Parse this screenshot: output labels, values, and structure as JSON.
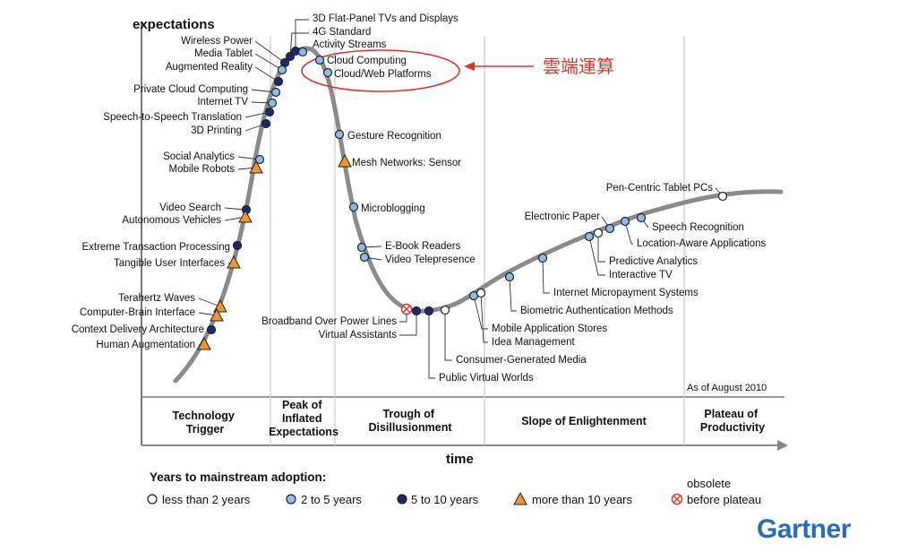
{
  "axis": {
    "y_label": "expectations",
    "x_label": "time"
  },
  "as_of": "As of August 2010",
  "phases": [
    {
      "lines": [
        "Technology",
        "Trigger"
      ]
    },
    {
      "lines": [
        "Peak of",
        "Inflated",
        "Expectations"
      ]
    },
    {
      "lines": [
        "Trough of",
        "Disillusionment"
      ]
    },
    {
      "lines": [
        "Slope of Enlightenment"
      ]
    },
    {
      "lines": [
        "Plateau of",
        "Productivity"
      ]
    }
  ],
  "annotation": {
    "text": "雲端運算",
    "color": "#d9342b"
  },
  "legend": {
    "title": "Years to mainstream adoption:",
    "items": [
      {
        "label": "less than 2 years",
        "marker": "white-circle"
      },
      {
        "label": "2 to 5 years",
        "marker": "light-blue-circle"
      },
      {
        "label": "5 to 10 years",
        "marker": "dark-blue-circle"
      },
      {
        "label": "more than 10 years",
        "marker": "orange-triangle"
      },
      {
        "label": "before plateau",
        "marker": "red-x-circle",
        "prefix": "obsolete"
      }
    ]
  },
  "brand": "Gartner",
  "colors": {
    "white": "#ffffff",
    "light_blue": "#8fbce6",
    "dark_blue": "#1b2a6b",
    "orange": "#f0962e",
    "red": "#d9342b",
    "curve": "#8a8a8a"
  },
  "technologies": [
    {
      "label": "3D Flat-Panel TVs and Displays",
      "marker": "dark-blue-circle"
    },
    {
      "label": "4G Standard",
      "marker": "dark-blue-circle"
    },
    {
      "label": "Activity Streams",
      "marker": "light-blue-circle"
    },
    {
      "label": "Wireless Power",
      "marker": "dark-blue-circle"
    },
    {
      "label": "Media Tablet",
      "marker": "light-blue-circle"
    },
    {
      "label": "Augmented Reality",
      "marker": "dark-blue-circle"
    },
    {
      "label": "Private Cloud Computing",
      "marker": "light-blue-circle"
    },
    {
      "label": "Internet TV",
      "marker": "light-blue-circle"
    },
    {
      "label": "Speech-to-Speech Translation",
      "marker": "dark-blue-circle"
    },
    {
      "label": "3D Printing",
      "marker": "dark-blue-circle"
    },
    {
      "label": "Social Analytics",
      "marker": "light-blue-circle"
    },
    {
      "label": "Mobile Robots",
      "marker": "orange-triangle"
    },
    {
      "label": "Video Search",
      "marker": "dark-blue-circle"
    },
    {
      "label": "Autonomous Vehicles",
      "marker": "orange-triangle"
    },
    {
      "label": "Extreme Transaction Processing",
      "marker": "dark-blue-circle"
    },
    {
      "label": "Tangible User Interfaces",
      "marker": "orange-triangle"
    },
    {
      "label": "Terahertz Waves",
      "marker": "orange-triangle"
    },
    {
      "label": "Computer-Brain Interface",
      "marker": "orange-triangle"
    },
    {
      "label": "Context Delivery Architecture",
      "marker": "dark-blue-circle"
    },
    {
      "label": "Human Augmentation",
      "marker": "orange-triangle"
    },
    {
      "label": "Cloud Computing",
      "marker": "light-blue-circle"
    },
    {
      "label": "Cloud/Web Platforms",
      "marker": "light-blue-circle"
    },
    {
      "label": "Gesture Recognition",
      "marker": "light-blue-circle"
    },
    {
      "label": "Mesh Networks: Sensor",
      "marker": "orange-triangle"
    },
    {
      "label": "Microblogging",
      "marker": "light-blue-circle"
    },
    {
      "label": "E-Book Readers",
      "marker": "light-blue-circle"
    },
    {
      "label": "Video Telepresence",
      "marker": "light-blue-circle"
    },
    {
      "label": "Broadband Over Power Lines",
      "marker": "red-x-circle"
    },
    {
      "label": "Virtual Assistants",
      "marker": "dark-blue-circle"
    },
    {
      "label": "Public Virtual Worlds",
      "marker": "dark-blue-circle"
    },
    {
      "label": "Consumer-Generated Media",
      "marker": "white-circle"
    },
    {
      "label": "Mobile Application Stores",
      "marker": "light-blue-circle"
    },
    {
      "label": "Idea Management",
      "marker": "white-circle"
    },
    {
      "label": "Biometric Authentication Methods",
      "marker": "light-blue-circle"
    },
    {
      "label": "Internet Micropayment Systems",
      "marker": "light-blue-circle"
    },
    {
      "label": "Interactive TV",
      "marker": "light-blue-circle"
    },
    {
      "label": "Predictive Analytics",
      "marker": "white-circle"
    },
    {
      "label": "Electronic Paper",
      "marker": "light-blue-circle"
    },
    {
      "label": "Location-Aware Applications",
      "marker": "light-blue-circle"
    },
    {
      "label": "Speech Recognition",
      "marker": "light-blue-circle"
    },
    {
      "label": "Pen-Centric Tablet PCs",
      "marker": "white-circle"
    }
  ]
}
